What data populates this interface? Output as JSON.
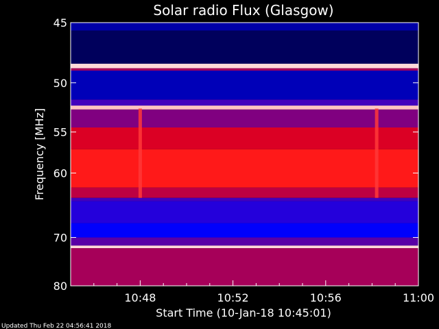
{
  "chart_data": {
    "type": "heatmap",
    "title": "Solar radio Flux (Glasgow)",
    "xlabel": "Start Time (10-Jan-18 10:45:01)",
    "ylabel": "Frequency [MHz]",
    "x_ticks": [
      {
        "minute": 48,
        "label": "10:48"
      },
      {
        "minute": 52,
        "label": "10:52"
      },
      {
        "minute": 56,
        "label": "10:56"
      },
      {
        "minute": 60,
        "label": "11:00"
      }
    ],
    "x_range_minutes": [
      45.0,
      60.0
    ],
    "y_ticks": [
      {
        "freq": 45,
        "label": "45"
      },
      {
        "freq": 50,
        "label": "50"
      },
      {
        "freq": 55,
        "label": "55"
      },
      {
        "freq": 60,
        "label": "60"
      },
      {
        "freq": 70,
        "label": "70"
      },
      {
        "freq": 80,
        "label": "80"
      }
    ],
    "y_scale": "reciprocal",
    "y_range_mhz": [
      45,
      80
    ],
    "colormap": [
      "#000000",
      "#0000ff",
      "#ff0000",
      "#ffffff"
    ],
    "frequency_bands": [
      {
        "from": 45.0,
        "to": 45.6,
        "level": 0.22
      },
      {
        "from": 45.6,
        "to": 48.3,
        "level": 0.12
      },
      {
        "from": 48.3,
        "to": 48.7,
        "level": 0.95
      },
      {
        "from": 48.7,
        "to": 48.9,
        "level": 0.55
      },
      {
        "from": 48.9,
        "to": 51.6,
        "level": 0.24
      },
      {
        "from": 51.6,
        "to": 52.2,
        "level": 0.42
      },
      {
        "from": 52.2,
        "to": 52.6,
        "level": 0.92
      },
      {
        "from": 52.6,
        "to": 54.5,
        "level": 0.5
      },
      {
        "from": 54.5,
        "to": 57.0,
        "level": 0.62
      },
      {
        "from": 57.0,
        "to": 62.0,
        "level": 0.7
      },
      {
        "from": 62.0,
        "to": 63.5,
        "level": 0.58
      },
      {
        "from": 63.5,
        "to": 64.0,
        "level": 0.42
      },
      {
        "from": 64.0,
        "to": 67.5,
        "level": 0.38
      },
      {
        "from": 67.5,
        "to": 70.0,
        "level": 0.33
      },
      {
        "from": 70.0,
        "to": 71.5,
        "level": 0.45
      },
      {
        "from": 71.5,
        "to": 72.0,
        "level": 0.95
      },
      {
        "from": 72.0,
        "to": 80.0,
        "level": 0.55
      }
    ],
    "bursts": [
      {
        "time": 48.0,
        "f_from": 52.5,
        "f_to": 63.5,
        "level": 0.74
      },
      {
        "time": 58.2,
        "f_from": 52.5,
        "f_to": 63.5,
        "level": 0.74
      }
    ]
  },
  "footer": {
    "updated": "Updated Thu Feb 22 04:56:41 2018"
  }
}
